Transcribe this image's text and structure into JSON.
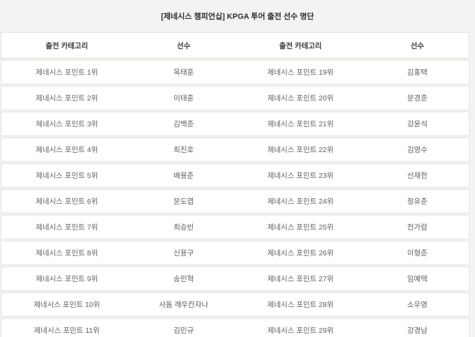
{
  "page": {
    "title": "[제네시스 챔피언십] KPGA 투어 출전 선수 명단"
  },
  "colors": {
    "page_background": "#f4f3f1",
    "row_background": "#ffffff",
    "border": "#e6e4e0",
    "header_text": "#3a3a3a",
    "cell_text": "#5e5e5e"
  },
  "table": {
    "headers": [
      "출전 카테고리",
      "선수",
      "출전 카테고리",
      "선수"
    ],
    "rows": [
      {
        "cells": [
          "제네시스 포인트 1위",
          "옥태훈",
          "제네시스 포인트 19위",
          "김홍택"
        ]
      },
      {
        "cells": [
          "제네시스 포인트 2위",
          "이태훈",
          "제네시스 포인트 20위",
          "문경준"
        ]
      },
      {
        "cells": [
          "제네시스 포인트 3위",
          "김백준",
          "제네시스 포인트 21위",
          "강윤석"
        ]
      },
      {
        "cells": [
          "제네시스 포인트 4위",
          "최진호",
          "제네시스 포인트 22위",
          "김영수"
        ]
      },
      {
        "cells": [
          "제네시스 포인트 5위",
          "배용준",
          "제네시스 포인트 23위",
          "선재한"
        ]
      },
      {
        "cells": [
          "제네시스 포인트 6위",
          "문도엽",
          "제네시스 포인트 24위",
          "정유준"
        ]
      },
      {
        "cells": [
          "제네시스 포인트 7위",
          "최승빈",
          "제네시스 포인트 25위",
          "전가람"
        ]
      },
      {
        "cells": [
          "제네시스 포인트 8위",
          "신용구",
          "제네시스 포인트 26위",
          "이형준"
        ]
      },
      {
        "cells": [
          "제네시스 포인트 9위",
          "송민혁",
          "제네시스 포인트 27위",
          "임예택"
        ]
      },
      {
        "cells": [
          "제네시스 포인트 10위",
          "사돔 깨우칸자나",
          "제네시스 포인트 28위",
          "소우영"
        ]
      },
      {
        "cells": [
          "제네시스 포인트 11위",
          "김민규",
          "제네시스 포인트 29위",
          "강경남"
        ]
      }
    ]
  }
}
